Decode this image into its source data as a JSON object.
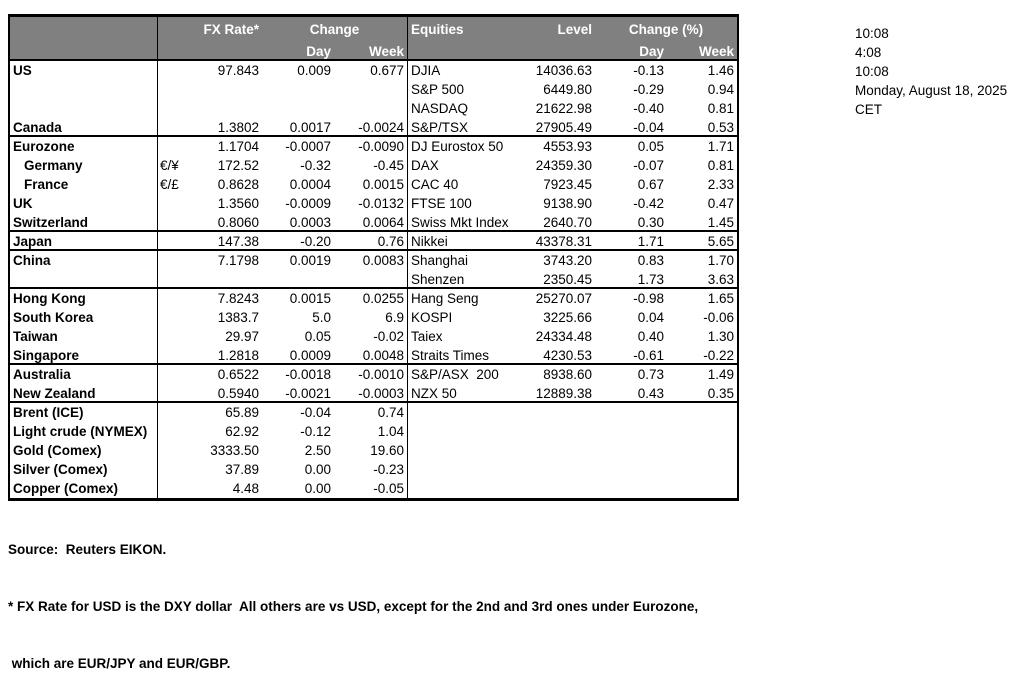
{
  "colors": {
    "header_bg": "#808080",
    "header_text": "#ffffff",
    "border": "#000000",
    "text": "#000000",
    "background": "#ffffff"
  },
  "table": {
    "header": {
      "fx_rate": "FX Rate*",
      "change": "Change",
      "day": "Day",
      "week": "Week",
      "equities": "Equities",
      "level": "Level",
      "change_pct": "Change (%)"
    },
    "rows": [
      {
        "label": "US",
        "indent": false,
        "pair": "",
        "fx": "97.843",
        "day": "0.009",
        "week": "0.677",
        "eq": "DJIA",
        "level": "14036.63",
        "eday": "-0.13",
        "eweek": "1.46",
        "sep": false
      },
      {
        "label": "",
        "indent": false,
        "pair": "",
        "fx": "",
        "day": "",
        "week": "",
        "eq": "S&P 500",
        "level": "6449.80",
        "eday": "-0.29",
        "eweek": "0.94",
        "sep": false
      },
      {
        "label": "",
        "indent": false,
        "pair": "",
        "fx": "",
        "day": "",
        "week": "",
        "eq": "NASDAQ",
        "level": "21622.98",
        "eday": "-0.40",
        "eweek": "0.81",
        "sep": false
      },
      {
        "label": "Canada",
        "indent": false,
        "pair": "",
        "fx": "1.3802",
        "day": "0.0017",
        "week": "-0.0024",
        "eq": "S&P/TSX",
        "level": "27905.49",
        "eday": "-0.04",
        "eweek": "0.53",
        "sep": true
      },
      {
        "label": "Eurozone",
        "indent": false,
        "pair": "",
        "fx": "1.1704",
        "day": "-0.0007",
        "week": "-0.0090",
        "eq": "DJ Eurostox 50",
        "level": "4553.93",
        "eday": "0.05",
        "eweek": "1.71",
        "sep": false
      },
      {
        "label": "Germany",
        "indent": true,
        "pair": "€/¥",
        "fx": "172.52",
        "day": "-0.32",
        "week": "-0.45",
        "eq": "DAX",
        "level": "24359.30",
        "eday": "-0.07",
        "eweek": "0.81",
        "sep": false
      },
      {
        "label": "France",
        "indent": true,
        "pair": "€/£",
        "fx": "0.8628",
        "day": "0.0004",
        "week": "0.0015",
        "eq": "CAC 40",
        "level": "7923.45",
        "eday": "0.67",
        "eweek": "2.33",
        "sep": false
      },
      {
        "label": "UK",
        "indent": false,
        "pair": "",
        "fx": "1.3560",
        "day": "-0.0009",
        "week": "-0.0132",
        "eq": "FTSE 100",
        "level": "9138.90",
        "eday": "-0.42",
        "eweek": "0.47",
        "sep": false
      },
      {
        "label": "Switzerland",
        "indent": false,
        "pair": "",
        "fx": "0.8060",
        "day": "0.0003",
        "week": "0.0064",
        "eq": "Swiss Mkt Index",
        "level": "2640.70",
        "eday": "0.30",
        "eweek": "1.45",
        "sep": true
      },
      {
        "label": "Japan",
        "indent": false,
        "pair": "",
        "fx": "147.38",
        "day": "-0.20",
        "week": "0.76",
        "eq": "Nikkei",
        "level": "43378.31",
        "eday": "1.71",
        "eweek": "5.65",
        "sep": true
      },
      {
        "label": "China",
        "indent": false,
        "pair": "",
        "fx": "7.1798",
        "day": "0.0019",
        "week": "0.0083",
        "eq": "Shanghai",
        "level": "3743.20",
        "eday": "0.83",
        "eweek": "1.70",
        "sep": false
      },
      {
        "label": "",
        "indent": false,
        "pair": "",
        "fx": "",
        "day": "",
        "week": "",
        "eq": "Shenzen",
        "level": "2350.45",
        "eday": "1.73",
        "eweek": "3.63",
        "sep": true
      },
      {
        "label": "Hong Kong",
        "indent": false,
        "pair": "",
        "fx": "7.8243",
        "day": "0.0015",
        "week": "0.0255",
        "eq": "Hang Seng",
        "level": "25270.07",
        "eday": "-0.98",
        "eweek": "1.65",
        "sep": false
      },
      {
        "label": "South Korea",
        "indent": false,
        "pair": "",
        "fx": "1383.7",
        "day": "5.0",
        "week": "6.9",
        "eq": "KOSPI",
        "level": "3225.66",
        "eday": "0.04",
        "eweek": "-0.06",
        "sep": false
      },
      {
        "label": "Taiwan",
        "indent": false,
        "pair": "",
        "fx": "29.97",
        "day": "0.05",
        "week": "-0.02",
        "eq": "Taiex",
        "level": "24334.48",
        "eday": "0.40",
        "eweek": "1.30",
        "sep": false
      },
      {
        "label": "Singapore",
        "indent": false,
        "pair": "",
        "fx": "1.2818",
        "day": "0.0009",
        "week": "0.0048",
        "eq": "Straits Times",
        "level": "4230.53",
        "eday": "-0.61",
        "eweek": "-0.22",
        "sep": true
      },
      {
        "label": "Australia",
        "indent": false,
        "pair": "",
        "fx": "0.6522",
        "day": "-0.0018",
        "week": "-0.0010",
        "eq": "S&P/ASX  200",
        "level": "8938.60",
        "eday": "0.73",
        "eweek": "1.49",
        "sep": false
      },
      {
        "label": "New Zealand",
        "indent": false,
        "pair": "",
        "fx": "0.5940",
        "day": "-0.0021",
        "week": "-0.0003",
        "eq": "NZX 50",
        "level": "12889.38",
        "eday": "0.43",
        "eweek": "0.35",
        "sep": true
      },
      {
        "label": "Brent (ICE)",
        "indent": false,
        "pair": "",
        "fx": "65.89",
        "day": "-0.04",
        "week": "0.74",
        "eq": "",
        "level": "",
        "eday": "",
        "eweek": "",
        "sep": false
      },
      {
        "label": "Light crude (NYMEX)",
        "indent": false,
        "pair": "",
        "fx": "62.92",
        "day": "-0.12",
        "week": "1.04",
        "eq": "",
        "level": "",
        "eday": "",
        "eweek": "",
        "sep": false
      },
      {
        "label": "Gold (Comex)",
        "indent": false,
        "pair": "",
        "fx": "3333.50",
        "day": "2.50",
        "week": "19.60",
        "eq": "",
        "level": "",
        "eday": "",
        "eweek": "",
        "sep": false
      },
      {
        "label": "Silver (Comex)",
        "indent": false,
        "pair": "",
        "fx": "37.89",
        "day": "0.00",
        "week": "-0.23",
        "eq": "",
        "level": "",
        "eday": "",
        "eweek": "",
        "sep": false
      },
      {
        "label": "Copper (Comex)",
        "indent": false,
        "pair": "",
        "fx": "4.48",
        "day": "0.00",
        "week": "-0.05",
        "eq": "",
        "level": "",
        "eday": "",
        "eweek": "",
        "sep": false
      }
    ]
  },
  "timestamps": [
    "10:08",
    "4:08",
    "10:08",
    "Monday, August 18, 2025",
    "CET"
  ],
  "footer": {
    "source": "Source:  Reuters EIKON.",
    "footnote1": "* FX Rate for USD is the DXY dollar  All others are vs USD, except for the 2nd and 3rd ones under Eurozone,",
    "footnote2": " which are EUR/JPY and EUR/GBP."
  }
}
